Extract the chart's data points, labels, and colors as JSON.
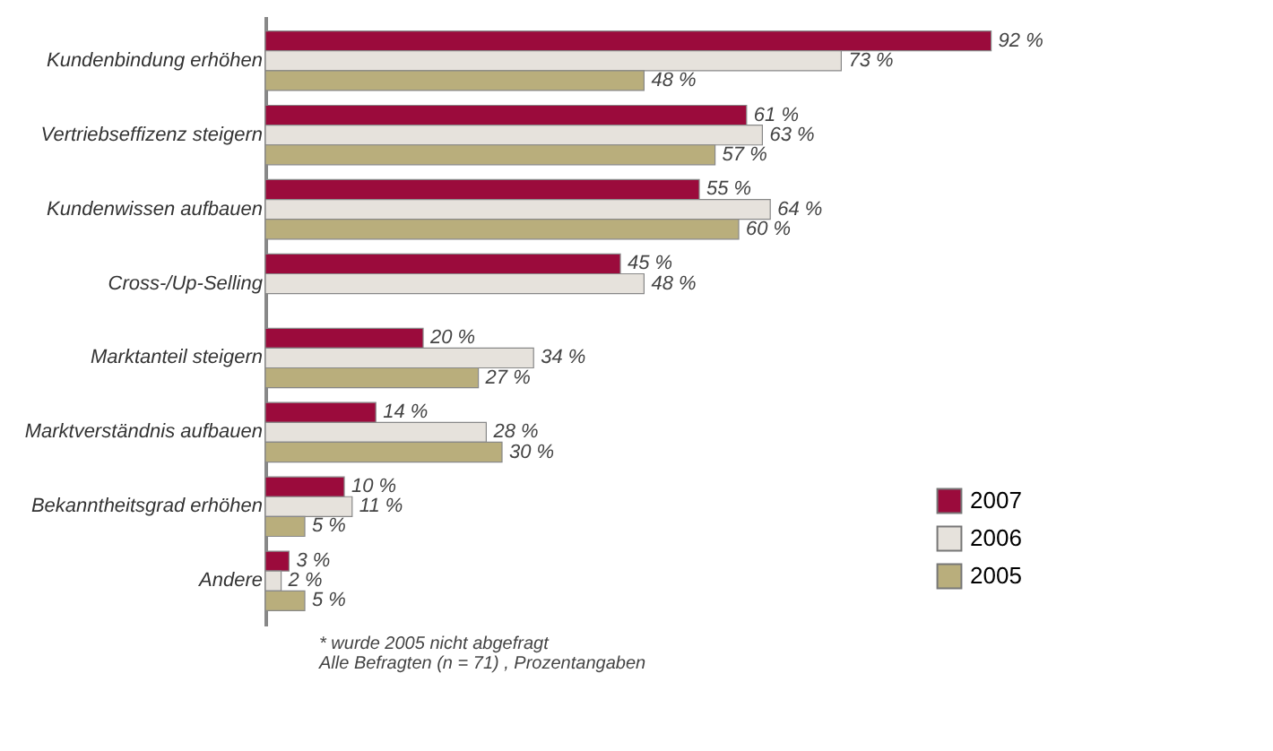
{
  "chart_data": {
    "type": "bar",
    "orientation": "horizontal",
    "categories": [
      "Kundenbindung erhöhen",
      "Vertriebseffizenz steigern",
      "Kundenwissen aufbauen",
      "Cross-/Up-Selling",
      "Marktanteil steigern",
      "Marktverständnis aufbauen",
      "Bekanntheitsgrad erhöhen",
      "Andere"
    ],
    "series": [
      {
        "name": "2007",
        "color": "#9b0b3c",
        "values": [
          92,
          61,
          55,
          45,
          20,
          14,
          10,
          3
        ],
        "value_labels": [
          "92 %",
          "61 %",
          "55 %",
          "45 %",
          "20 %",
          "14 %",
          "10 %",
          "3 %"
        ]
      },
      {
        "name": "2006",
        "color": "#e6e2dc",
        "values": [
          73,
          63,
          64,
          48,
          34,
          28,
          11,
          2
        ],
        "value_labels": [
          "73 %",
          "63 %",
          "64 %",
          "48 %",
          "34 %",
          "28 %",
          "11 %",
          "2 %"
        ]
      },
      {
        "name": "2005",
        "color": "#b9ae7c",
        "values": [
          48,
          57,
          60,
          null,
          27,
          30,
          5,
          5
        ],
        "value_labels": [
          "48 %",
          "57 %",
          "60 %",
          null,
          "27 %",
          "30 %",
          "5 %",
          "5 %"
        ]
      }
    ],
    "legend": "bottom right",
    "annotations": [
      "* wurde 2005 nicht abgefragt",
      "Alle Befragten (n = 71) , Prozentangaben"
    ]
  }
}
